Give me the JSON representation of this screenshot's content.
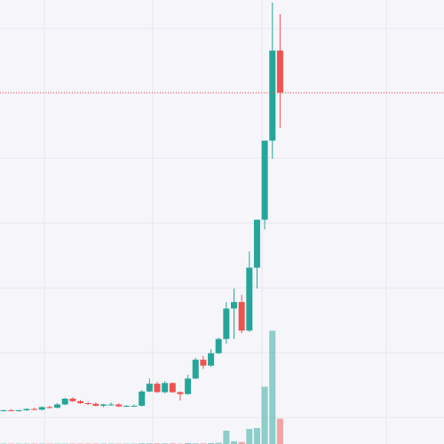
{
  "chart_data": {
    "type": "candlestick",
    "open": [
      1.0,
      1.1,
      1.0,
      1.1,
      1.3,
      1.2,
      1.6,
      1.5,
      2.0,
      2.9,
      2.5,
      2.2,
      2.1,
      1.8,
      2.0,
      2.0,
      1.7,
      1.8,
      1.8,
      4.0,
      5.2,
      3.9,
      5.3,
      3.9,
      3.6,
      6.0,
      8.9,
      8.0,
      9.9,
      12.1,
      16.8,
      17.8,
      13.4,
      23.1,
      30.5,
      42.7,
      56.6
    ],
    "high": [
      1.2,
      1.3,
      1.2,
      1.4,
      1.5,
      1.7,
      1.8,
      2.2,
      3.0,
      3.1,
      2.7,
      2.4,
      2.3,
      2.1,
      2.3,
      2.2,
      1.9,
      2.0,
      4.2,
      6.0,
      5.5,
      5.6,
      5.4,
      4.0,
      6.6,
      9.2,
      9.5,
      10.5,
      12.3,
      17.8,
      19.9,
      18.9,
      25.6,
      30.5,
      42.7,
      64.0,
      62.2
    ],
    "low": [
      0.9,
      1.0,
      0.9,
      1.0,
      1.1,
      1.1,
      1.4,
      1.4,
      1.9,
      2.4,
      2.1,
      1.9,
      1.7,
      1.6,
      1.8,
      1.6,
      1.6,
      1.7,
      1.7,
      3.9,
      3.8,
      3.7,
      3.8,
      2.6,
      3.5,
      5.9,
      7.5,
      7.8,
      9.8,
      11.4,
      12.1,
      13.0,
      13.2,
      19.9,
      29.0,
      39.9,
      44.7
    ],
    "close": [
      1.1,
      1.0,
      1.1,
      1.3,
      1.2,
      1.6,
      1.5,
      2.0,
      2.9,
      2.5,
      2.2,
      2.1,
      1.8,
      2.0,
      2.0,
      1.7,
      1.8,
      1.8,
      4.0,
      5.2,
      3.9,
      5.3,
      3.9,
      3.6,
      6.0,
      8.9,
      8.0,
      9.9,
      12.1,
      16.8,
      17.8,
      13.4,
      23.1,
      30.5,
      42.7,
      56.6,
      50.1
    ],
    "volume": [
      0.3,
      0.3,
      0.3,
      0.3,
      0.3,
      0.3,
      0.3,
      0.3,
      0.3,
      0.3,
      0.3,
      0.3,
      0.3,
      0.3,
      0.3,
      0.3,
      0.3,
      0.3,
      0.5,
      0.5,
      0.5,
      0.5,
      0.5,
      0.3,
      0.7,
      0.5,
      0.5,
      0.7,
      1.0,
      10,
      2,
      1.5,
      11.3,
      12,
      43,
      85,
      19
    ],
    "up_color": "#26a69a",
    "down_color": "#ef5350",
    "ylim": [
      -4.1,
      64.4
    ],
    "yticks": [
      0,
      10,
      20,
      30,
      40,
      50,
      60
    ],
    "volume_lim": [
      0,
      100
    ],
    "grid": true,
    "last_price_line": true
  }
}
